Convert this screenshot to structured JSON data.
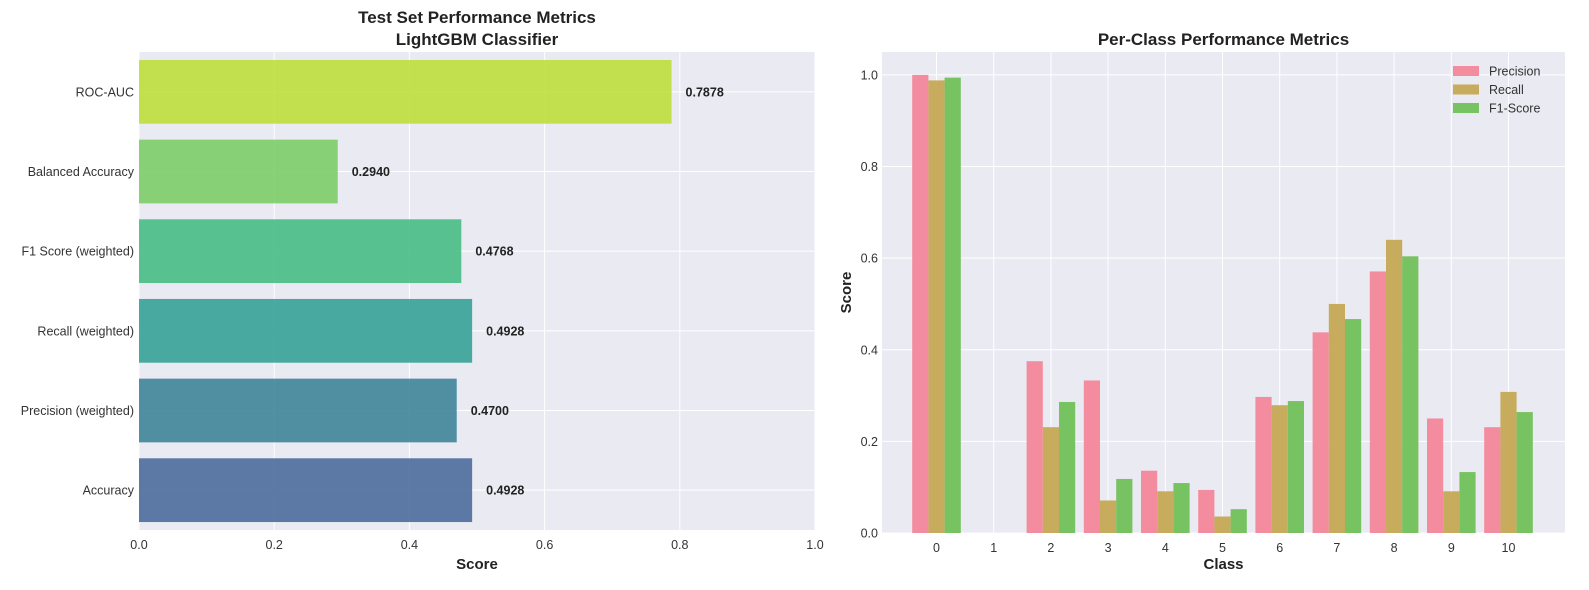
{
  "chart_data": [
    {
      "type": "bar",
      "orientation": "horizontal",
      "title": "Test Set Performance Metrics",
      "subtitle": "LightGBM Classifier",
      "xlabel": "Score",
      "ylabel": "",
      "xlim": [
        0,
        1.0
      ],
      "xticks": [
        "0.0",
        "0.2",
        "0.4",
        "0.6",
        "0.8",
        "1.0"
      ],
      "categories": [
        "Accuracy",
        "Precision (weighted)",
        "Recall (weighted)",
        "F1 Score (weighted)",
        "Balanced Accuracy",
        "ROC-AUC"
      ],
      "values": [
        0.4928,
        0.47,
        0.4928,
        0.4768,
        0.294,
        0.7878
      ],
      "value_labels": [
        "0.4928",
        "0.4700",
        "0.4928",
        "0.4768",
        "0.2940",
        "0.7878"
      ],
      "colors": [
        "#4b6d9b",
        "#3f8599",
        "#35a296",
        "#47bd85",
        "#7dcd68",
        "#bedf3c"
      ],
      "grid": true
    },
    {
      "type": "bar",
      "orientation": "vertical",
      "title": "Per-Class Performance Metrics",
      "xlabel": "Class",
      "ylabel": "Score",
      "ylim": [
        0,
        1.05
      ],
      "yticks": [
        "0.0",
        "0.2",
        "0.4",
        "0.6",
        "0.8",
        "1.0"
      ],
      "categories": [
        "0",
        "1",
        "2",
        "3",
        "4",
        "5",
        "6",
        "7",
        "8",
        "9",
        "10"
      ],
      "series": [
        {
          "name": "Precision",
          "color": "#f48398",
          "values": [
            1.0,
            0.0,
            0.375,
            0.333,
            0.136,
            0.094,
            0.297,
            0.438,
            0.571,
            0.25,
            0.231
          ]
        },
        {
          "name": "Recall",
          "color": "#c4a651",
          "values": [
            0.988,
            0.0,
            0.231,
            0.071,
            0.091,
            0.036,
            0.279,
            0.5,
            0.64,
            0.091,
            0.308
          ]
        },
        {
          "name": "F1-Score",
          "color": "#6cbe55",
          "values": [
            0.994,
            0.0,
            0.286,
            0.118,
            0.109,
            0.052,
            0.288,
            0.467,
            0.604,
            0.133,
            0.264
          ]
        }
      ],
      "legend": "top-right",
      "grid": true
    }
  ]
}
